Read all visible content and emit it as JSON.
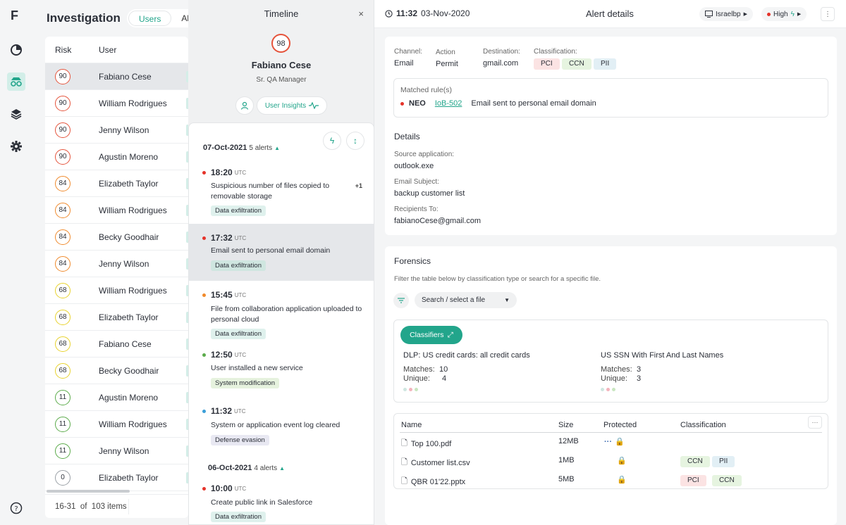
{
  "nav": {
    "logo": "F",
    "icons": [
      "pie-chart-icon",
      "investigation-icon",
      "layers-icon",
      "gear-icon",
      "help-icon"
    ]
  },
  "investigation": {
    "title": "Investigation",
    "tabs": [
      "Users",
      "Ale"
    ],
    "columns": {
      "risk": "Risk",
      "user": "User"
    },
    "rows": [
      {
        "score": "90",
        "name": "Fabiano Cese",
        "color": "#e5533b"
      },
      {
        "score": "90",
        "name": "William Rodrigues",
        "color": "#e5533b"
      },
      {
        "score": "90",
        "name": "Jenny Wilson",
        "color": "#e5533b"
      },
      {
        "score": "90",
        "name": "Agustin Moreno",
        "color": "#e5533b"
      },
      {
        "score": "84",
        "name": "Elizabeth Taylor",
        "color": "#f08a2c"
      },
      {
        "score": "84",
        "name": "William Rodrigues",
        "color": "#f08a2c"
      },
      {
        "score": "84",
        "name": "Becky Goodhair",
        "color": "#f08a2c"
      },
      {
        "score": "84",
        "name": "Jenny Wilson",
        "color": "#f08a2c"
      },
      {
        "score": "68",
        "name": "William Rodrigues",
        "color": "#e8d22c"
      },
      {
        "score": "68",
        "name": "Elizabeth Taylor",
        "color": "#e8d22c"
      },
      {
        "score": "68",
        "name": "Fabiano Cese",
        "color": "#e8d22c"
      },
      {
        "score": "68",
        "name": "Becky Goodhair",
        "color": "#e8d22c"
      },
      {
        "score": "11",
        "name": "Agustin Moreno",
        "color": "#5bab4a"
      },
      {
        "score": "11",
        "name": "William Rodrigues",
        "color": "#5bab4a"
      },
      {
        "score": "11",
        "name": "Jenny Wilson",
        "color": "#5bab4a"
      },
      {
        "score": "0",
        "name": "Elizabeth Taylor",
        "color": "#9aa0a6"
      }
    ],
    "pagination": {
      "range": "16-31",
      "of": "of",
      "total": "103 items"
    }
  },
  "timeline": {
    "title": "Timeline",
    "close": "×",
    "score": "98",
    "name": "Fabiano Cese",
    "role": "Sr. QA Manager",
    "insights": "User Insights",
    "days": [
      {
        "date": "07-Oct-2021",
        "count": "5 alerts"
      },
      {
        "date": "06-Oct-2021",
        "count": "4 alerts"
      }
    ],
    "events": [
      {
        "time": "18:20",
        "tz": "UTC",
        "desc": "Suspicious number of files copied to removable storage",
        "tag": "Data exfiltration",
        "extra": "+1",
        "dot": "#e5332a"
      },
      {
        "time": "17:32",
        "tz": "UTC",
        "desc": "Email sent to personal email domain",
        "tag": "Data exfiltration",
        "dot": "#e5332a"
      },
      {
        "time": "15:45",
        "tz": "UTC",
        "desc": "File from collaboration application uploaded to personal cloud",
        "tag": "Data exfiltration",
        "dot": "#f08a2c"
      },
      {
        "time": "12:50",
        "tz": "UTC",
        "desc": "User installed a new service",
        "tag": "System modification",
        "dot": "#5bab4a"
      },
      {
        "time": "11:32",
        "tz": "UTC",
        "desc": "System or application event log cleared",
        "tag": "Defense evasion",
        "dot": "#3b9fd8"
      },
      {
        "time": "10:00",
        "tz": "UTC",
        "desc": "Create public link in Salesforce",
        "tag": "Data exfiltration",
        "dot": "#e5332a"
      }
    ]
  },
  "alert": {
    "time": "11:32",
    "date": "03-Nov-2020",
    "title": "Alert details",
    "host": "Israelbp",
    "severity": "High",
    "channel_label": "Channel:",
    "channel": "Email",
    "action_label": "Action",
    "action": "Permit",
    "dest_label": "Destination:",
    "dest": "gmail.com",
    "class_label": "Classification:",
    "classes": [
      "PCI",
      "CCN",
      "PII"
    ],
    "rule_label": "Matched rule(s)",
    "rule_src": "NEO",
    "rule_id": "IoB-502",
    "rule_desc": "Email sent to personal email domain",
    "details_title": "Details",
    "src_app_label": "Source application:",
    "src_app": "outlook.exe",
    "subject_label": "Email Subject:",
    "subject": "backup customer list",
    "recip_label": "Recipients To:",
    "recip": "fabianoCese@gmail.com"
  },
  "forensics": {
    "title": "Forensics",
    "hint": "Filter the table below by classification type or search for a specific file.",
    "search_placeholder": "Search / select a file",
    "classifiers_btn": "Classifiers",
    "classifiers": [
      {
        "name": "DLP: US credit cards: all credit cards",
        "matches_label": "Matches:",
        "matches": "10",
        "unique_label": "Unique:",
        "unique": "4"
      },
      {
        "name": "US SSN With First And Last Names",
        "matches_label": "Matches:",
        "matches": "3",
        "unique_label": "Unique:",
        "unique": "3"
      }
    ],
    "columns": [
      "Name",
      "Size",
      "Protected",
      "Classification"
    ],
    "files": [
      {
        "name": "Top 100.pdf",
        "size": "12MB",
        "classes": []
      },
      {
        "name": "Customer list.csv",
        "size": "1MB",
        "classes": [
          "CCN",
          "PII"
        ]
      },
      {
        "name": "QBR 01'22.pptx",
        "size": "5MB",
        "classes": [
          "PCI",
          "CCN"
        ]
      }
    ]
  }
}
